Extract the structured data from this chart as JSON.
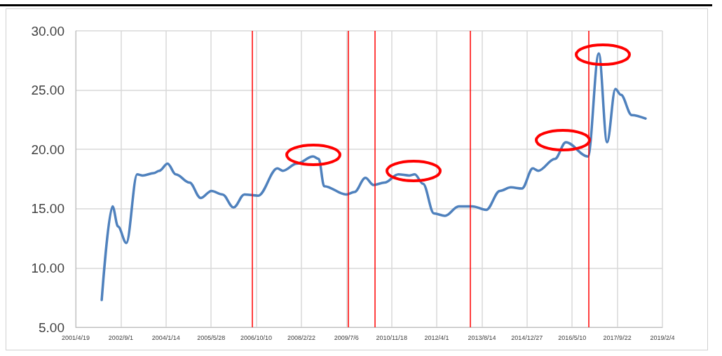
{
  "chart_data": {
    "type": "line",
    "x": [
      "2002-02",
      "2002-06",
      "2002-08",
      "2002-11",
      "2003-03",
      "2003-05",
      "2003-09",
      "2003-11",
      "2004-02",
      "2004-05",
      "2004-10",
      "2005-02",
      "2005-06",
      "2005-10",
      "2006-02",
      "2006-06",
      "2006-11",
      "2007-06",
      "2007-08",
      "2008-01",
      "2008-07",
      "2008-09",
      "2008-11",
      "2009-07",
      "2009-10",
      "2010-02",
      "2010-05",
      "2010-09",
      "2011-02",
      "2011-06",
      "2011-08",
      "2011-11",
      "2012-03",
      "2012-07",
      "2012-12",
      "2013-05",
      "2013-10",
      "2014-03",
      "2014-07",
      "2014-11",
      "2015-03",
      "2015-05",
      "2015-11",
      "2016-03",
      "2016-11",
      "2017-03",
      "2017-06",
      "2017-09",
      "2017-11",
      "2018-03",
      "2018-08"
    ],
    "series": [
      {
        "color": "#4f81bd",
        "values": [
          7.3,
          15.2,
          13.5,
          12.1,
          17.9,
          17.8,
          18.0,
          18.2,
          18.8,
          17.9,
          17.2,
          15.9,
          16.5,
          16.2,
          15.1,
          16.2,
          16.1,
          18.4,
          18.2,
          18.8,
          19.4,
          19.2,
          16.9,
          16.2,
          16.4,
          17.6,
          17.0,
          17.2,
          17.9,
          17.8,
          17.9,
          17.1,
          14.6,
          14.4,
          15.2,
          15.2,
          14.9,
          16.5,
          16.8,
          16.7,
          18.4,
          18.2,
          19.2,
          20.6,
          19.4,
          28.1,
          20.6,
          25.1,
          24.6,
          22.9,
          22.6
        ]
      }
    ],
    "xlim": [
      "2001-04-19",
      "2019-02-04"
    ],
    "xticks": [
      {
        "value": "2001-04-19",
        "label": "2001/4/19"
      },
      {
        "value": "2002-09-01",
        "label": "2002/9/1"
      },
      {
        "value": "2004-01-14",
        "label": "2004/1/14"
      },
      {
        "value": "2005-05-28",
        "label": "2005/5/28"
      },
      {
        "value": "2006-10-10",
        "label": "2006/10/10"
      },
      {
        "value": "2008-02-22",
        "label": "2008/2/22"
      },
      {
        "value": "2009-07-06",
        "label": "2009/7/6"
      },
      {
        "value": "2010-11-18",
        "label": "2010/11/18"
      },
      {
        "value": "2012-04-01",
        "label": "2012/4/1"
      },
      {
        "value": "2013-08-14",
        "label": "2013/8/14"
      },
      {
        "value": "2014-12-27",
        "label": "2014/12/27"
      },
      {
        "value": "2016-05-10",
        "label": "2016/5/10"
      },
      {
        "value": "2017-09-22",
        "label": "2017/9/22"
      },
      {
        "value": "2019-02-04",
        "label": "2019/2/4"
      }
    ],
    "ylim": [
      5,
      30
    ],
    "yticks": [
      {
        "value": 5,
        "label": "5.00"
      },
      {
        "value": 10,
        "label": "10.00"
      },
      {
        "value": 15,
        "label": "15.00"
      },
      {
        "value": 20,
        "label": "20.00"
      },
      {
        "value": 25,
        "label": "25.00"
      },
      {
        "value": 30,
        "label": "30.00"
      }
    ],
    "ref_lines": [
      {
        "axis": "x",
        "value": "2006-08-28",
        "color": "#ff0000"
      },
      {
        "axis": "x",
        "value": "2009-07-26",
        "color": "#ff0000"
      },
      {
        "axis": "x",
        "value": "2010-05-17",
        "color": "#ff0000"
      },
      {
        "axis": "x",
        "value": "2013-04-09",
        "color": "#ff0000"
      },
      {
        "axis": "x",
        "value": "2016-11-06",
        "color": "#ff0000"
      }
    ],
    "grid": true,
    "marker": "none",
    "line_style": "solid"
  }
}
